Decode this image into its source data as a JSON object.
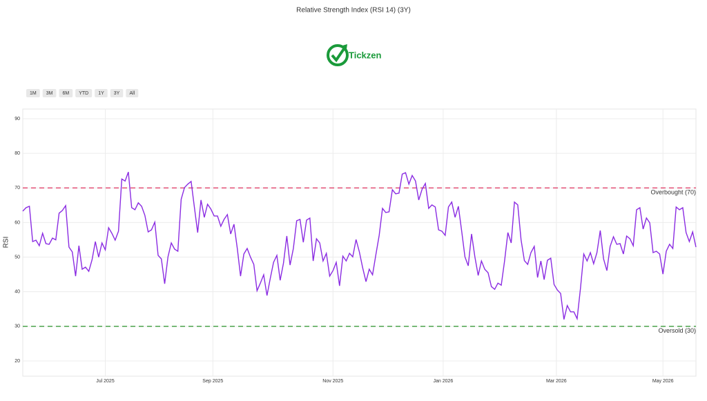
{
  "chart_data": {
    "type": "line",
    "title": "Relative Strength Index (RSI 14) (3Y)",
    "logo": "Tickzen",
    "range_buttons": [
      "1M",
      "3M",
      "6M",
      "YTD",
      "1Y",
      "3Y",
      "All"
    ],
    "ylabel": "RSI",
    "series": [
      {
        "name": "RSI",
        "color": "#8a2be2",
        "values": [
          63.3,
          64.3,
          64.7,
          54.5,
          54.9,
          53.3,
          56.9,
          53.9,
          53.7,
          55.5,
          55,
          62.7,
          63.5,
          64.9,
          52.9,
          51.5,
          44.5,
          53.3,
          46.5,
          47.1,
          45.9,
          49.3,
          54.5,
          50,
          54.1,
          52.1,
          58.5,
          56.9,
          54.9,
          57.5,
          72.6,
          72,
          74.6,
          64.3,
          63.7,
          65.7,
          64.7,
          62.1,
          57.3,
          57.9,
          60.1,
          50.5,
          49.5,
          42.3,
          50.1,
          54.1,
          52.3,
          51.7,
          66.7,
          70.1,
          71.1,
          71.9,
          64.5,
          57.1,
          66.5,
          61.5,
          65.3,
          63.9,
          61.9,
          61.9,
          58.9,
          60.9,
          62.3,
          56.7,
          59.5,
          52.5,
          44.5,
          50.9,
          52.5,
          50,
          47.9,
          40.3,
          42.5,
          44.9,
          38.9,
          43.9,
          48.5,
          50.5,
          43.3,
          48.3,
          56.1,
          47.7,
          52.5,
          60.5,
          60.9,
          54.3,
          60.7,
          61.3,
          48.9,
          55.3,
          54.1,
          48.9,
          51.1,
          44.5,
          46.1,
          48.5,
          41.7,
          50.3,
          48.9,
          51.1,
          50.1,
          55.1,
          51.5,
          46.9,
          42.9,
          46.5,
          44.9,
          50.7,
          56.3,
          64.1,
          62.9,
          63.1,
          69.5,
          68.3,
          68.5,
          74,
          74.4,
          71.1,
          73.6,
          72,
          66.5,
          69.6,
          71.3,
          64.1,
          65.1,
          64.5,
          57.9,
          57.5,
          56.3,
          64.5,
          65.9,
          61.5,
          64.7,
          57.5,
          50.1,
          47.5,
          56.7,
          50.1,
          44.7,
          48.9,
          46.5,
          45.5,
          41.5,
          40.7,
          42.5,
          41.9,
          48.9,
          57.1,
          54.1,
          65.9,
          65.1,
          55,
          49,
          47.9,
          51.3,
          53.1,
          44.1,
          48.9,
          43.5,
          49.1,
          49.7,
          42.1,
          40.5,
          39.5,
          32,
          36,
          34.2,
          34.2,
          32.2,
          40.9,
          50.9,
          48.9,
          51.3,
          48.1,
          51.3,
          57.7,
          49.5,
          46.1,
          53.1,
          55.9,
          53.7,
          53.9,
          50.9,
          56.1,
          55.3,
          53.3,
          63.7,
          64.3,
          58.1,
          61.3,
          59.9,
          51.3,
          51.7,
          50.9,
          45.1,
          51.7,
          53.7,
          52.5,
          64.5,
          63.7,
          64.3,
          57.1,
          54.5,
          57.3,
          52.9
        ]
      }
    ],
    "xlim": [
      0,
      204
    ],
    "xticks": [
      {
        "value": 25,
        "label": "Jul 2025"
      },
      {
        "value": 57.6,
        "label": "Sep 2025"
      },
      {
        "value": 94,
        "label": "Nov 2025"
      },
      {
        "value": 127.4,
        "label": "Jan 2026"
      },
      {
        "value": 161.7,
        "label": "Mar 2026"
      },
      {
        "value": 194,
        "label": "May 2026"
      }
    ],
    "ylim": [
      15.6,
      92.8
    ],
    "yticks": [
      20,
      30,
      40,
      50,
      60,
      70,
      80,
      90
    ],
    "grid": true,
    "reference_lines": [
      {
        "value": 70,
        "label": "Overbought (70)",
        "color": "#e0436b"
      },
      {
        "value": 30,
        "label": "Oversold (30)",
        "color": "#3a9a3a"
      }
    ]
  }
}
